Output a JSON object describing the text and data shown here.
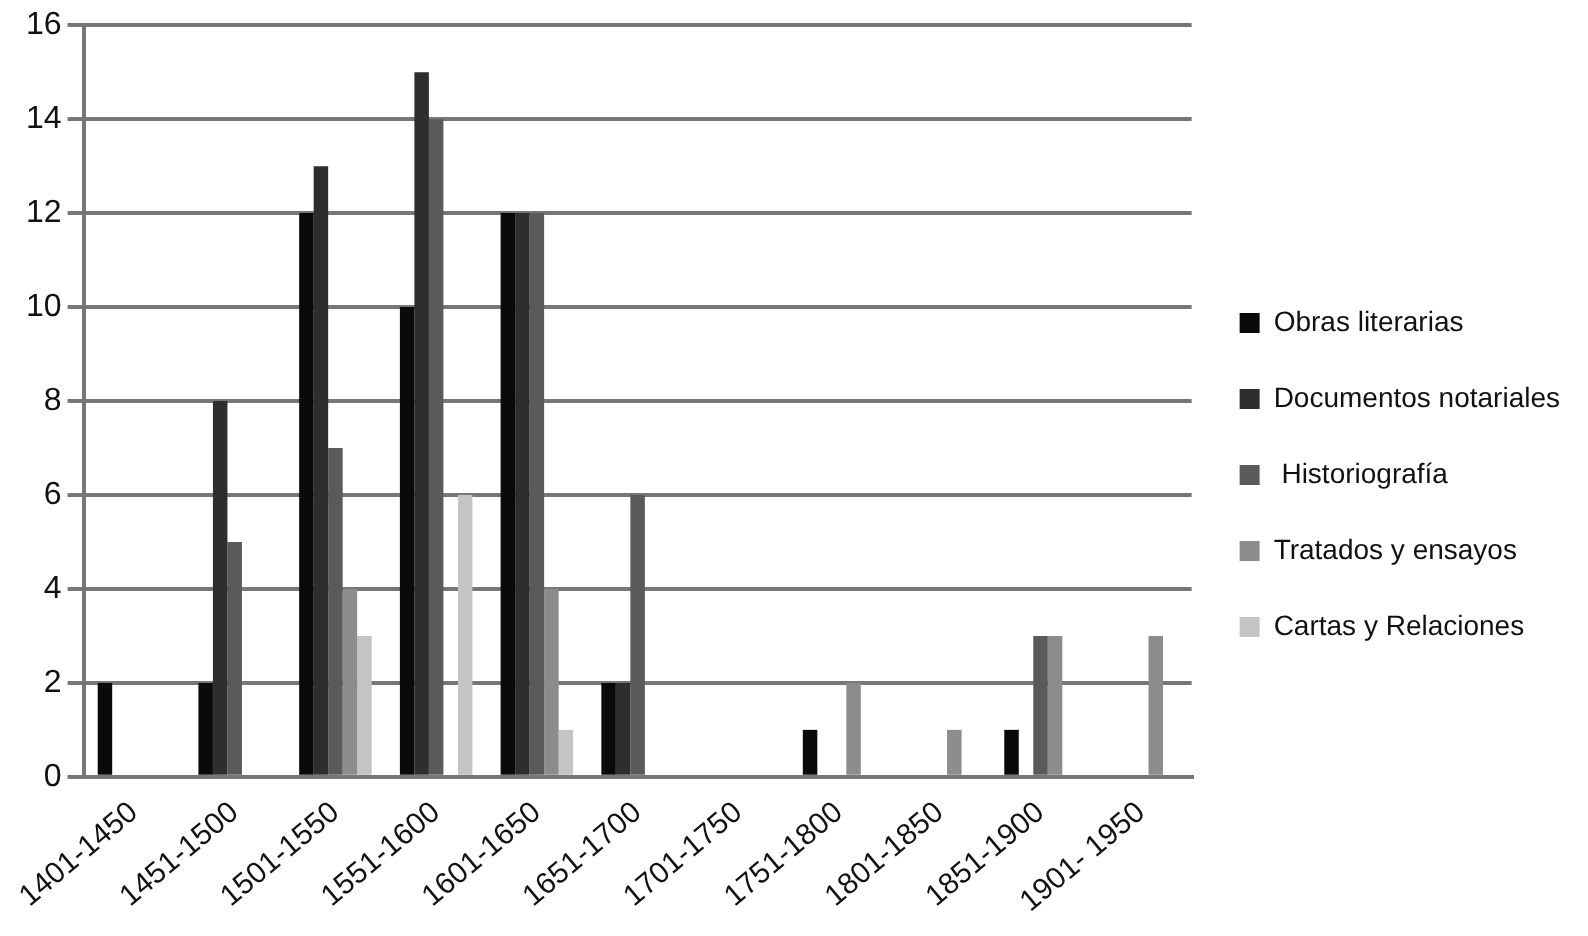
{
  "chart_data": {
    "type": "bar",
    "categories": [
      "1401-1450",
      "1451-1500",
      "1501-1550",
      "1551-1600",
      "1601-1650",
      "1651-1700",
      "1701-1750",
      "1751-1800",
      "1801-1850",
      "1851-1900",
      "1901- 1950"
    ],
    "series": [
      {
        "name": "Obras literarias",
        "color": "#0a0a0a",
        "values": [
          2,
          2,
          12,
          10,
          12,
          2,
          0,
          1,
          0,
          1,
          0
        ]
      },
      {
        "name": "Documentos notariales",
        "color": "#2e2e2e",
        "values": [
          0,
          8,
          13,
          15,
          12,
          2,
          0,
          0,
          0,
          0,
          0
        ]
      },
      {
        "name": " Historiografía",
        "color": "#5a5a5a",
        "values": [
          0,
          5,
          7,
          14,
          12,
          6,
          0,
          0,
          0,
          3,
          0
        ]
      },
      {
        "name": "Tratados y ensayos",
        "color": "#8c8c8c",
        "values": [
          0,
          0,
          4,
          0,
          4,
          0,
          0,
          2,
          1,
          3,
          3
        ]
      },
      {
        "name": "Cartas y Relaciones",
        "color": "#c4c4c4",
        "values": [
          0,
          0,
          3,
          6,
          1,
          0,
          0,
          0,
          0,
          0,
          0
        ]
      }
    ],
    "ylim": [
      0,
      16
    ],
    "yticks": [
      0,
      2,
      4,
      6,
      8,
      10,
      12,
      14,
      16
    ],
    "grid": "y",
    "legend": "right"
  }
}
